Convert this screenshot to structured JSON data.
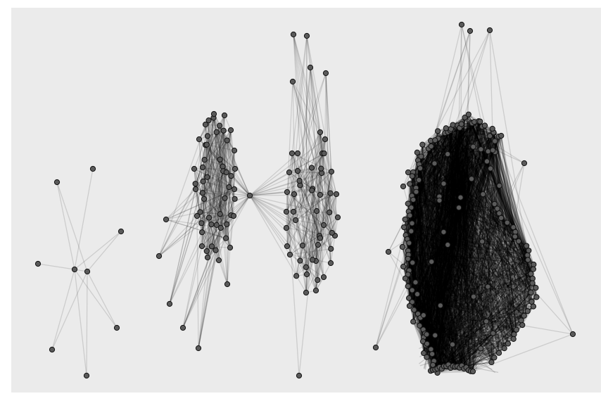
{
  "figure": {
    "kind": "network-graph",
    "background_color": "#ebebeb",
    "node_color": "#5a5a5a",
    "node_outline_color": "#111111",
    "edge_color": "#000000",
    "components": [
      {
        "name": "small-star-cluster",
        "node_count": 10
      },
      {
        "name": "left-dense-cluster",
        "node_count": 45
      },
      {
        "name": "middle-dense-cluster",
        "node_count": 50
      },
      {
        "name": "right-large-cluster",
        "node_count": 180
      }
    ]
  }
}
